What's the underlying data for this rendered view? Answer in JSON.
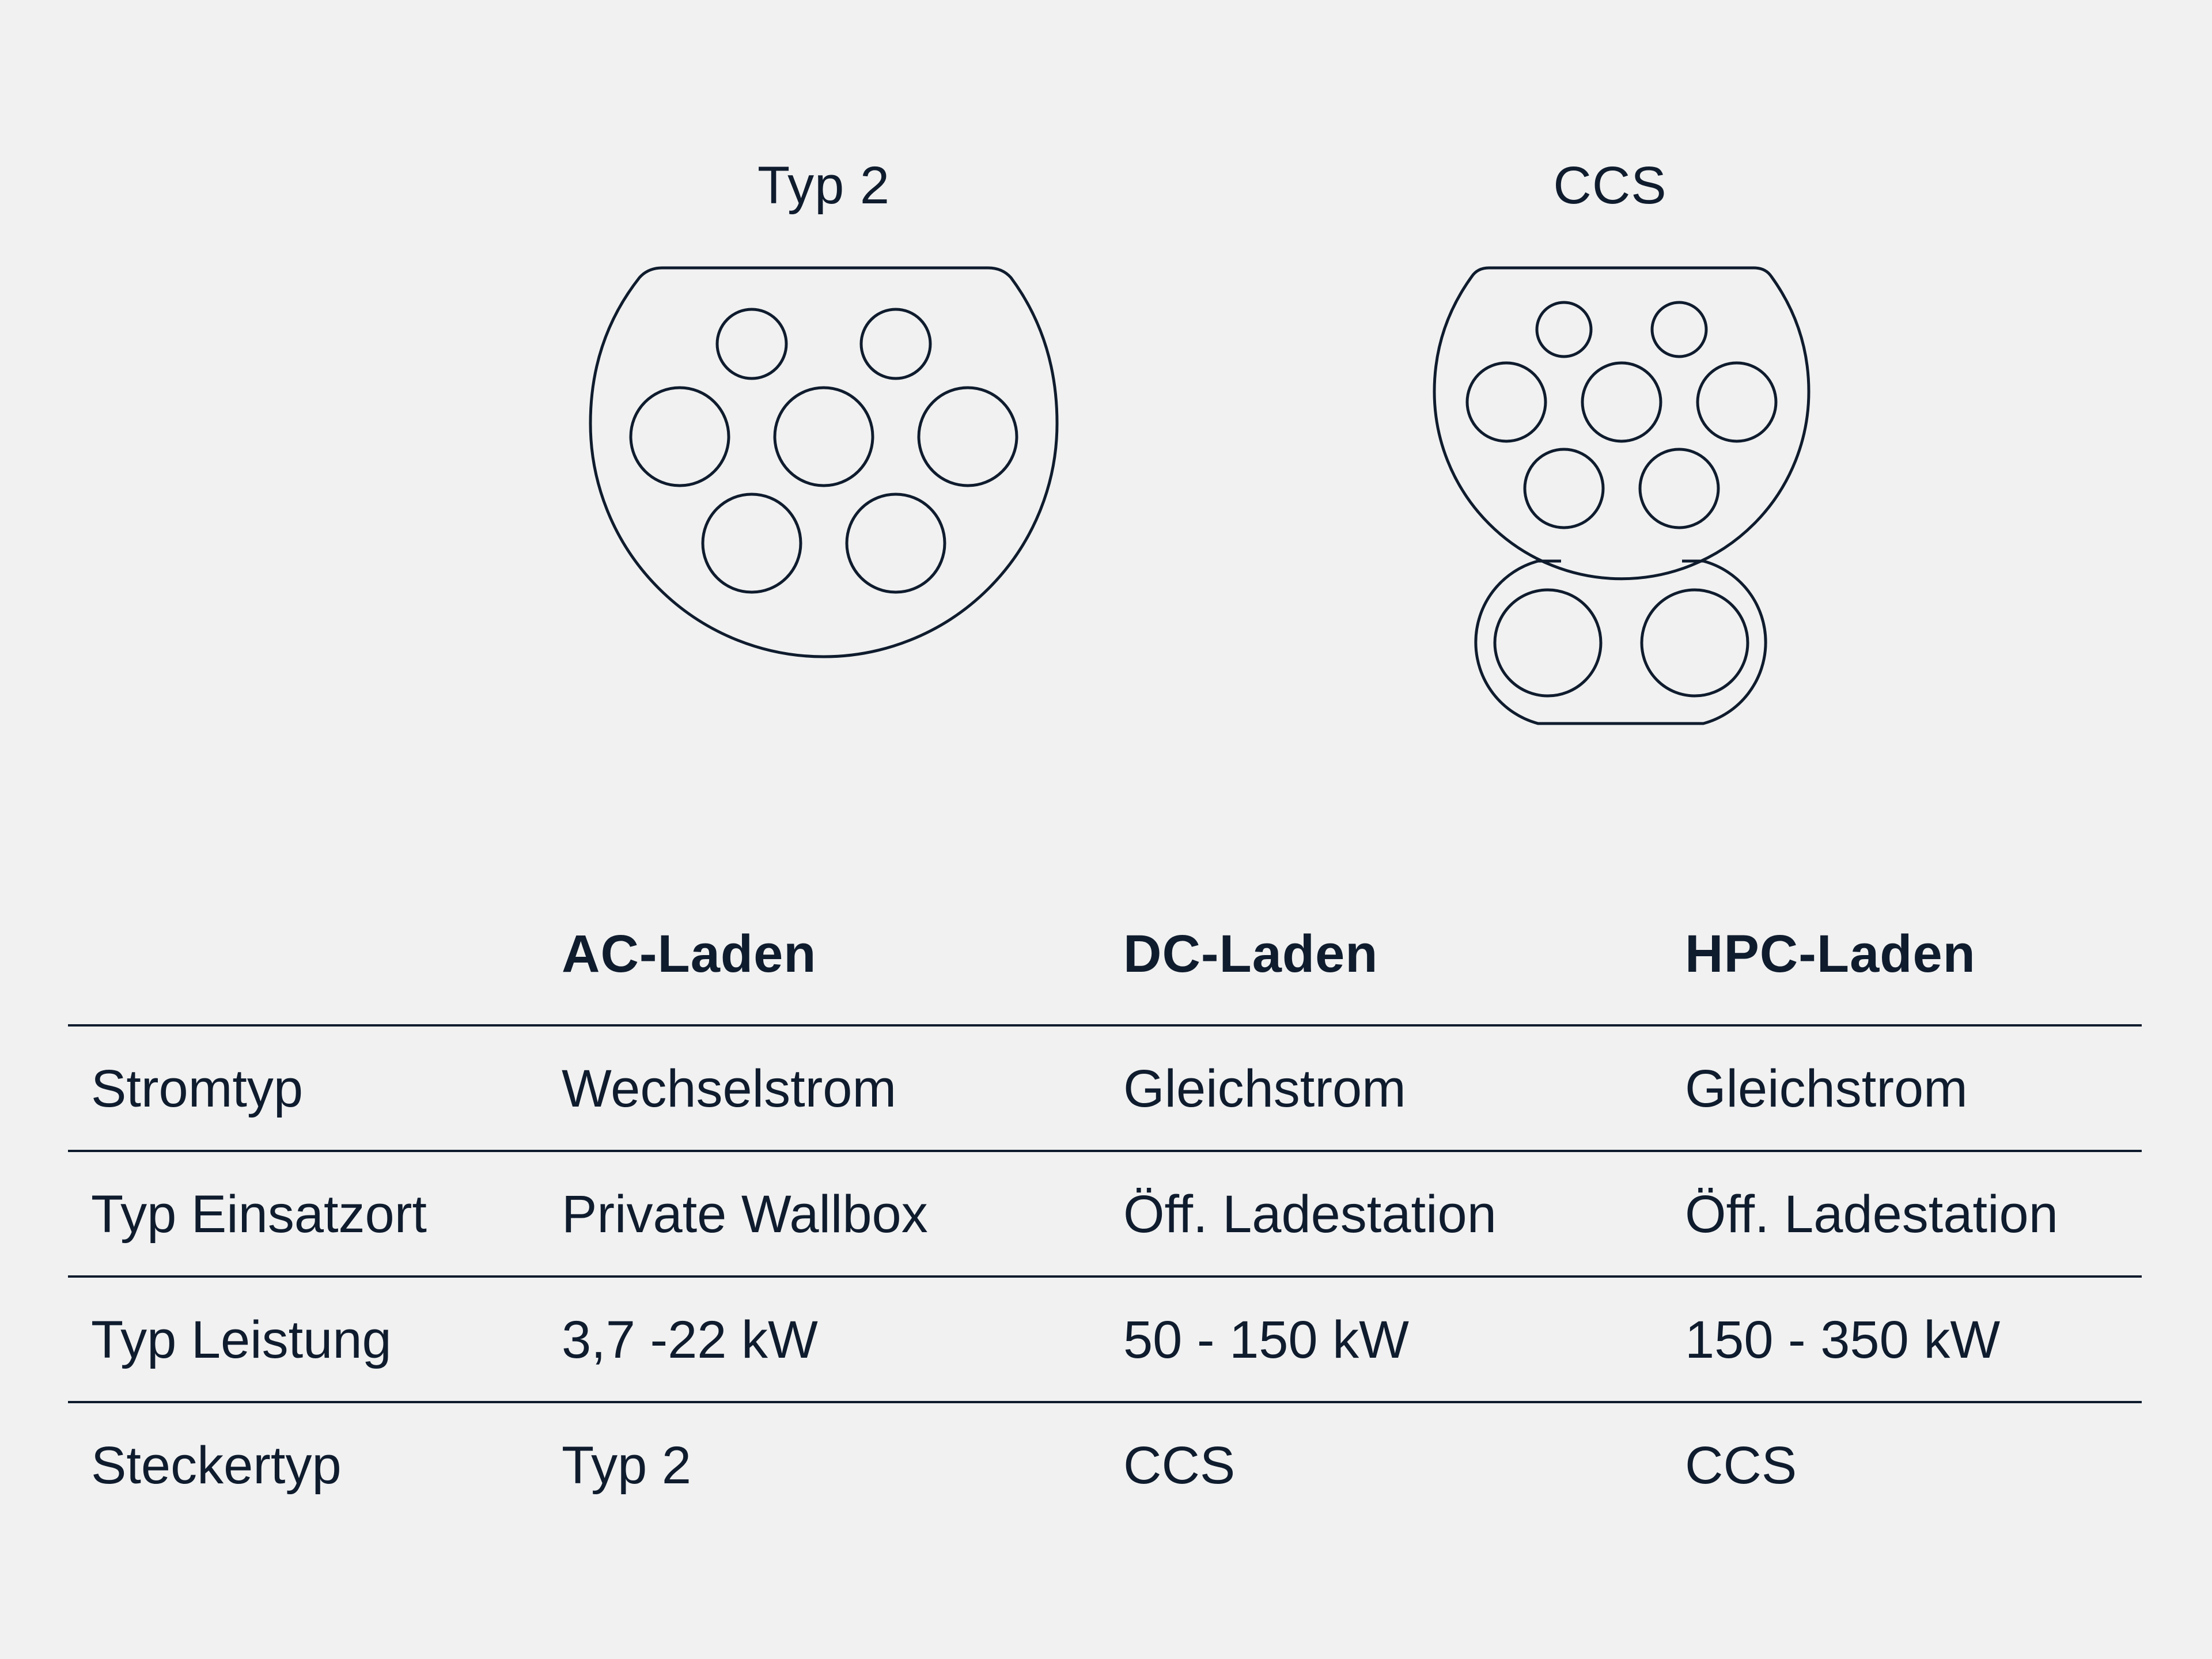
{
  "connectors": [
    {
      "label": "Typ 2"
    },
    {
      "label": "CCS"
    }
  ],
  "table": {
    "columns": [
      "",
      "AC-Laden",
      "DC-Laden",
      "HPC-Laden"
    ],
    "rows": [
      [
        "Stromtyp",
        "Wechselstrom",
        "Gleichstrom",
        "Gleichstrom"
      ],
      [
        "Typ Einsatzort",
        "Private Wallbox",
        "Öff. Ladestation",
        "Öff. Ladestation"
      ],
      [
        "Typ Leistung",
        "3,7 -22 kW",
        "50 - 150 kW",
        "150 - 350 kW"
      ],
      [
        "Steckertyp",
        "Typ 2",
        "CCS",
        "CCS"
      ]
    ]
  },
  "colors": {
    "background": "#f1f1f1",
    "ink": "#0f1c2e"
  },
  "icons": [
    "typ2-connector-icon",
    "ccs-connector-icon"
  ]
}
